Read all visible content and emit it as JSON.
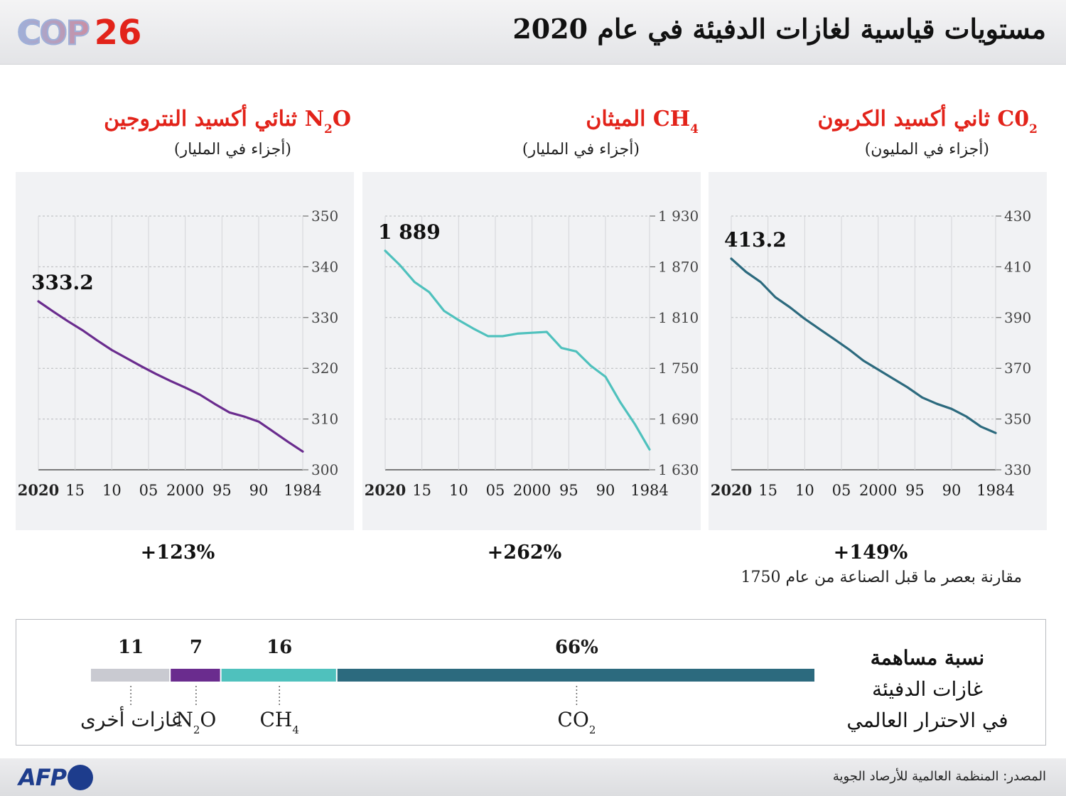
{
  "header": {
    "logo_word": "COP",
    "logo_number": "26",
    "title": "مستويات قياسية لغازات الدفيئة في عام 2020"
  },
  "panels": [
    {
      "id": "co2",
      "name": "ثاني أكسيد الكربون",
      "formula_main": "C0",
      "formula_sub": "2",
      "formula_tail": "",
      "unit": "(أجزاء في المليون)",
      "change": "+149%",
      "color": "#2c6a7e"
    },
    {
      "id": "ch4",
      "name": "الميثان",
      "formula_main": "CH",
      "formula_sub": "4",
      "formula_tail": "",
      "unit": "(أجزاء في المليار)",
      "change": "+262%",
      "color": "#4fc1bd"
    },
    {
      "id": "n2o",
      "name": "ثنائي أكسيد النتروجين",
      "formula_main": "N",
      "formula_sub": "2",
      "formula_tail": "O",
      "unit": "(أجزاء في المليار)",
      "change": "+123%",
      "color": "#6a2c8e"
    }
  ],
  "comparison_note": "مقارنة بعصر ما قبل الصناعة من عام 1750",
  "contribution": {
    "title_line1": "نسبة مساهمة",
    "title_line2": "غازات الدفيئة",
    "title_line3": "في الاحترار العالمي",
    "segments": [
      {
        "label": "غازات أخرى",
        "label_main": "غازات أخرى",
        "label_sub": "",
        "label_tail": "",
        "value": 11,
        "value_label": "11",
        "color": "#c9cad1"
      },
      {
        "label": "N2O",
        "label_main": "N",
        "label_sub": "2",
        "label_tail": "O",
        "value": 7,
        "value_label": "7",
        "color": "#6a2c8e"
      },
      {
        "label": "CH4",
        "label_main": "CH",
        "label_sub": "4",
        "label_tail": "",
        "value": 16,
        "value_label": "16",
        "color": "#4fc1bd"
      },
      {
        "label": "CO2",
        "label_main": "CO",
        "label_sub": "2",
        "label_tail": "",
        "value": 66,
        "value_label": "66%",
        "color": "#2c6a7e"
      }
    ]
  },
  "footer": {
    "agency": "AFP",
    "source": "المصدر: المنظمة العالمية للأرصاد الجوية"
  },
  "chart_data": [
    {
      "type": "line",
      "title": "C0₂ ثاني أكسيد الكربون",
      "ylabel": "(أجزاء في المليون)",
      "x_range": [
        1984,
        2020
      ],
      "ylim": [
        330,
        430
      ],
      "y_ticks": [
        "430",
        "410",
        "390",
        "370",
        "350",
        "330"
      ],
      "y_tick_values": [
        430,
        410,
        390,
        370,
        350,
        330
      ],
      "x_tick_labels": [
        "2020",
        "15",
        "10",
        "05",
        "2000",
        "95",
        "90",
        "1984"
      ],
      "x_tick_years": [
        2020,
        2015,
        2010,
        2005,
        2000,
        1995,
        1990,
        1984
      ],
      "end_label": "413.2",
      "grid": true,
      "series": [
        {
          "x": [
            1984,
            1986,
            1988,
            1990,
            1992,
            1994,
            1996,
            1998,
            2000,
            2002,
            2004,
            2006,
            2008,
            2010,
            2012,
            2014,
            2016,
            2018,
            2020
          ],
          "y": [
            344.5,
            347.0,
            351.0,
            354.0,
            356.0,
            358.5,
            362.5,
            366.0,
            369.5,
            373.0,
            377.5,
            381.5,
            385.5,
            389.5,
            394.0,
            398.0,
            404.0,
            408.0,
            413.2
          ]
        }
      ]
    },
    {
      "type": "line",
      "title": "CH₄ الميثان",
      "ylabel": "(أجزاء في المليار)",
      "x_range": [
        1984,
        2020
      ],
      "ylim": [
        1630,
        1930
      ],
      "y_ticks": [
        "1 930",
        "1 870",
        "1 810",
        "1 750",
        "1 690",
        "1 630"
      ],
      "y_tick_values": [
        1930,
        1870,
        1810,
        1750,
        1690,
        1630
      ],
      "x_tick_labels": [
        "2020",
        "15",
        "10",
        "05",
        "2000",
        "95",
        "90",
        "1984"
      ],
      "x_tick_years": [
        2020,
        2015,
        2010,
        2005,
        2000,
        1995,
        1990,
        1984
      ],
      "end_label": "1 889",
      "grid": true,
      "series": [
        {
          "x": [
            1984,
            1986,
            1988,
            1990,
            1992,
            1994,
            1996,
            1998,
            2000,
            2002,
            2004,
            2006,
            2008,
            2010,
            2012,
            2014,
            2016,
            2018,
            2020
          ],
          "y": [
            1654,
            1684,
            1710,
            1740,
            1753,
            1770,
            1774,
            1793,
            1792,
            1791,
            1788,
            1788,
            1797,
            1807,
            1818,
            1840,
            1852,
            1872,
            1889
          ]
        }
      ]
    },
    {
      "type": "line",
      "title": "N₂O ثنائي أكسيد النتروجين",
      "ylabel": "(أجزاء في المليار)",
      "x_range": [
        1984,
        2020
      ],
      "ylim": [
        300,
        350
      ],
      "y_ticks": [
        "350",
        "340",
        "330",
        "320",
        "310",
        "300"
      ],
      "y_tick_values": [
        350,
        340,
        330,
        320,
        310,
        300
      ],
      "x_tick_labels": [
        "2020",
        "15",
        "10",
        "05",
        "2000",
        "95",
        "90",
        "1984"
      ],
      "x_tick_years": [
        2020,
        2015,
        2010,
        2005,
        2000,
        1995,
        1990,
        1984
      ],
      "end_label": "333.2",
      "grid": true,
      "series": [
        {
          "x": [
            1984,
            1986,
            1988,
            1990,
            1992,
            1994,
            1996,
            1998,
            2000,
            2002,
            2004,
            2006,
            2008,
            2010,
            2012,
            2014,
            2016,
            2018,
            2020
          ],
          "y": [
            303.6,
            305.5,
            307.5,
            309.5,
            310.5,
            311.3,
            313.0,
            314.8,
            316.2,
            317.5,
            318.9,
            320.4,
            322.0,
            323.6,
            325.5,
            327.5,
            329.3,
            331.2,
            333.2
          ]
        }
      ]
    }
  ]
}
